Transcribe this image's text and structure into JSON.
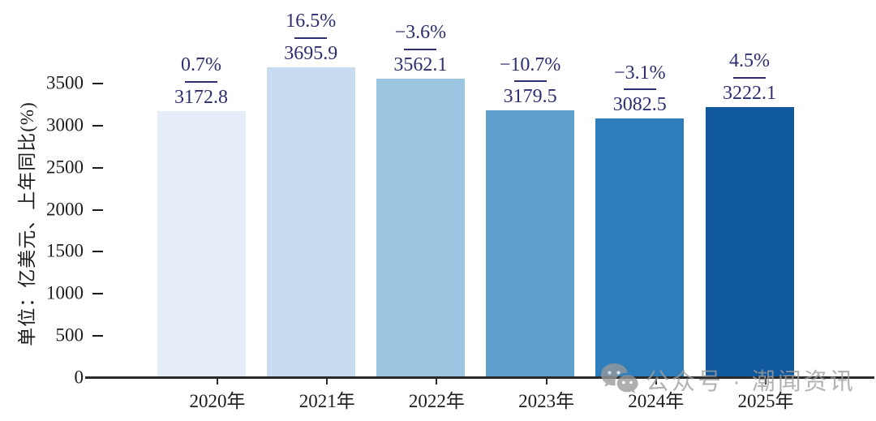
{
  "watermark": {
    "icon": "wechat-icon",
    "text": "公众号 · 潮闻资讯"
  },
  "chart_data": {
    "type": "bar",
    "title": "",
    "xlabel": "",
    "ylabel": "单位：亿美元、上年同比(%)",
    "categories": [
      "2020年",
      "2021年",
      "2022年",
      "2023年",
      "2024年",
      "2025年"
    ],
    "values": [
      3172.8,
      3695.9,
      3562.1,
      3179.5,
      3082.5,
      3222.1
    ],
    "value_labels": [
      "3172.8",
      "3695.9",
      "3562.1",
      "3179.5",
      "3082.5",
      "3222.1"
    ],
    "growth_labels": [
      "0.7%",
      "16.5%",
      "−3.6%",
      "−10.7%",
      "−3.1%",
      "4.5%"
    ],
    "yticks": [
      0,
      500,
      1000,
      1500,
      2000,
      2500,
      3000,
      3500
    ],
    "ylim": [
      0,
      3500
    ],
    "grid": false,
    "legend": false,
    "bar_colors": [
      "#e4edf8",
      "#c9dbee",
      "#9cc5e1",
      "#5da0ce",
      "#2e7ebc",
      "#11599f"
    ],
    "annotation_color": "#2d2e6f",
    "axis_color": "#1c1c1c"
  }
}
